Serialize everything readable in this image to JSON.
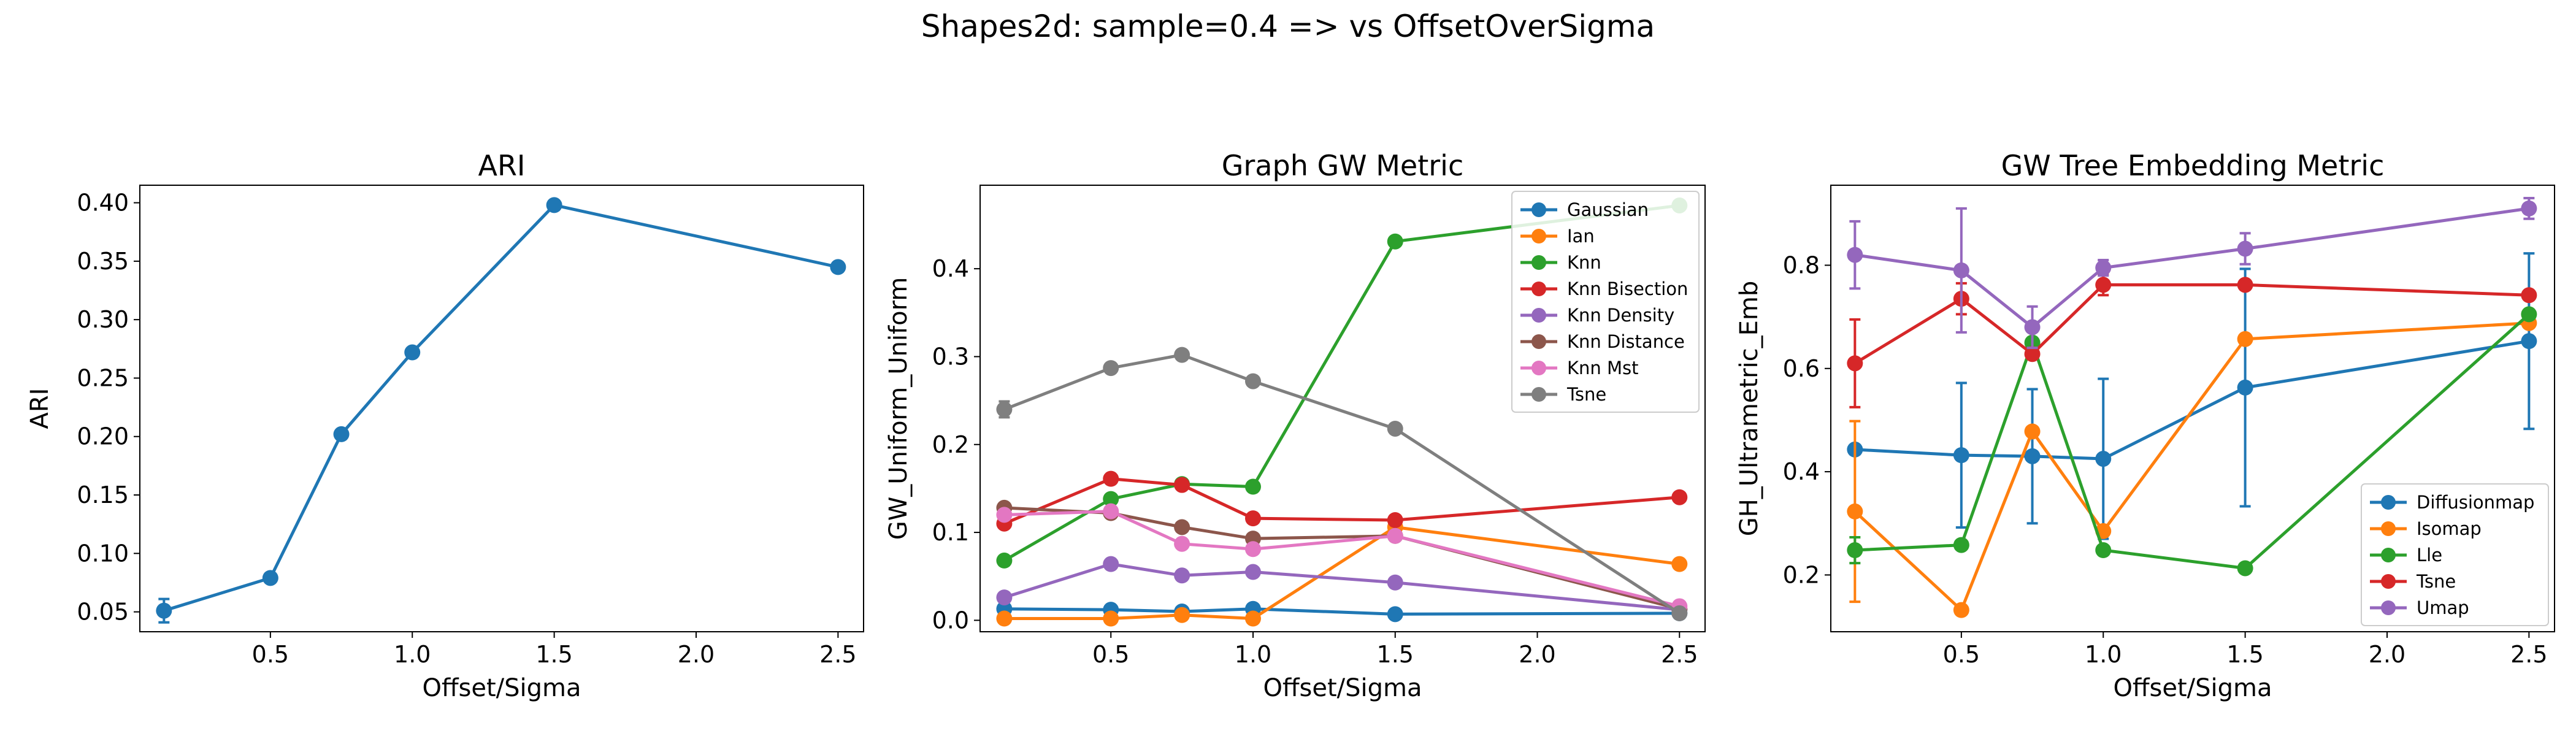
{
  "figure": {
    "suptitle": "Shapes2d: sample=0.4 => vs OffsetOverSigma"
  },
  "chart_data": [
    {
      "type": "line",
      "title": "ARI",
      "xlabel": "Offset/Sigma",
      "ylabel": "ARI",
      "xlim": [
        0.04,
        2.59
      ],
      "ylim": [
        0.033,
        0.415
      ],
      "xticks": [
        0.5,
        1.0,
        1.5,
        2.0,
        2.5
      ],
      "xtick_labels": [
        "0.5",
        "1.0",
        "1.5",
        "2.0",
        "2.5"
      ],
      "yticks": [
        0.05,
        0.1,
        0.15,
        0.2,
        0.25,
        0.3,
        0.35,
        0.4
      ],
      "ytick_labels": [
        "0.05",
        "0.10",
        "0.15",
        "0.20",
        "0.25",
        "0.30",
        "0.35",
        "0.40"
      ],
      "x": [
        0.125,
        0.5,
        0.75,
        1.0,
        1.5,
        2.5
      ],
      "series": [
        {
          "color": "#1f77b4",
          "values": [
            0.051,
            0.079,
            0.202,
            0.272,
            0.398,
            0.345
          ],
          "err": [
            0.01,
            0,
            0,
            0,
            0,
            0
          ]
        }
      ],
      "grid": false
    },
    {
      "type": "line",
      "title": "Graph GW Metric",
      "xlabel": "Offset/Sigma",
      "ylabel": "GW_Uniform_Uniform",
      "xlim": [
        0.04,
        2.59
      ],
      "ylim": [
        -0.013,
        0.495
      ],
      "xticks": [
        0.5,
        1.0,
        1.5,
        2.0,
        2.5
      ],
      "xtick_labels": [
        "0.5",
        "1.0",
        "1.5",
        "2.0",
        "2.5"
      ],
      "yticks": [
        0.0,
        0.1,
        0.2,
        0.3,
        0.4
      ],
      "ytick_labels": [
        "0.0",
        "0.1",
        "0.2",
        "0.3",
        "0.4"
      ],
      "x": [
        0.125,
        0.5,
        0.75,
        1.0,
        1.5,
        2.5
      ],
      "legend_position": "upper right",
      "series": [
        {
          "name": "Gaussian",
          "color": "#1f77b4",
          "values": [
            0.013,
            0.012,
            0.01,
            0.013,
            0.007,
            0.008
          ]
        },
        {
          "name": "Ian",
          "color": "#ff7f0e",
          "values": [
            0.002,
            0.002,
            0.006,
            0.002,
            0.106,
            0.064
          ]
        },
        {
          "name": "Knn",
          "color": "#2ca02c",
          "values": [
            0.068,
            0.138,
            0.155,
            0.152,
            0.431,
            0.472
          ]
        },
        {
          "name": "Knn Bisection",
          "color": "#d62728",
          "values": [
            0.11,
            0.161,
            0.154,
            0.116,
            0.114,
            0.14
          ]
        },
        {
          "name": "Knn Density",
          "color": "#9467bd",
          "values": [
            0.026,
            0.064,
            0.051,
            0.055,
            0.043,
            0.012
          ]
        },
        {
          "name": "Knn Distance",
          "color": "#8c564b",
          "values": [
            0.128,
            0.122,
            0.106,
            0.093,
            0.096,
            0.013
          ]
        },
        {
          "name": "Knn Mst",
          "color": "#e377c2",
          "values": [
            0.12,
            0.124,
            0.087,
            0.081,
            0.096,
            0.016
          ]
        },
        {
          "name": "Tsne",
          "color": "#7f7f7f",
          "values": [
            0.24,
            0.287,
            0.302,
            0.272,
            0.218,
            0.008
          ],
          "err": [
            0.009,
            0,
            0,
            0,
            0,
            0
          ]
        }
      ],
      "grid": false
    },
    {
      "type": "line",
      "title": "GW Tree Embedding Metric",
      "xlabel": "Offset/Sigma",
      "ylabel": "GH_Ultrametric_Emb",
      "xlim": [
        0.04,
        2.59
      ],
      "ylim": [
        0.09,
        0.955
      ],
      "xticks": [
        0.5,
        1.0,
        1.5,
        2.0,
        2.5
      ],
      "xtick_labels": [
        "0.5",
        "1.0",
        "1.5",
        "2.0",
        "2.5"
      ],
      "yticks": [
        0.2,
        0.4,
        0.6,
        0.8
      ],
      "ytick_labels": [
        "0.2",
        "0.4",
        "0.6",
        "0.8"
      ],
      "x": [
        0.125,
        0.5,
        0.75,
        1.0,
        1.5,
        2.5
      ],
      "legend_position": "lower right",
      "series": [
        {
          "name": "Diffusionmap",
          "color": "#1f77b4",
          "values": [
            0.443,
            0.432,
            0.43,
            0.425,
            0.563,
            0.653
          ],
          "err": [
            0.0,
            0.14,
            0.13,
            0.155,
            0.23,
            0.17
          ]
        },
        {
          "name": "Isomap",
          "color": "#ff7f0e",
          "values": [
            0.323,
            0.132,
            0.478,
            0.285,
            0.657,
            0.688
          ],
          "err": [
            0.175,
            0.0,
            0.0,
            0.0,
            0.0,
            0.0
          ]
        },
        {
          "name": "Lle",
          "color": "#2ca02c",
          "values": [
            0.248,
            0.258,
            0.65,
            0.248,
            0.213,
            0.705
          ],
          "err": [
            0.025,
            0.0,
            0.0,
            0.0,
            0.0,
            0.0
          ]
        },
        {
          "name": "Tsne",
          "color": "#d62728",
          "values": [
            0.61,
            0.735,
            0.628,
            0.762,
            0.762,
            0.742
          ],
          "err": [
            0.085,
            0.03,
            0.0,
            0.02,
            0.0,
            0.0
          ]
        },
        {
          "name": "Umap",
          "color": "#9467bd",
          "values": [
            0.82,
            0.79,
            0.68,
            0.795,
            0.832,
            0.91
          ],
          "err": [
            0.065,
            0.12,
            0.04,
            0.015,
            0.03,
            0.02
          ]
        }
      ],
      "grid": false
    }
  ]
}
